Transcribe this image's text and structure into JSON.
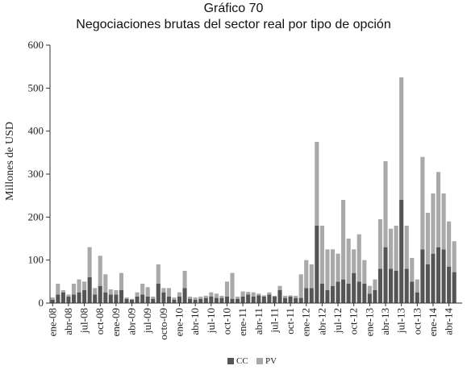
{
  "chart_data": {
    "type": "bar",
    "stacked": true,
    "title": "Gráfico 70",
    "subtitle": "Negociaciones brutas del sector real por tipo de opción",
    "ylabel": "Millones de USD",
    "ylim": [
      0,
      600
    ],
    "yticks": [
      "0",
      "100",
      "200",
      "300",
      "400",
      "500",
      "600"
    ],
    "tick_labels": [
      "ene-08",
      "abr-08",
      "jul-08",
      "oct-08",
      "ene-09",
      "abr-09",
      "jul-09",
      "octo-09",
      "ene-10",
      "abr-10",
      "jul-10",
      "oct-10",
      "ene-11",
      "abr-11",
      "jul-11",
      "oct-11",
      "ene-12",
      "abr-12",
      "jul-12",
      "oct-12",
      "ene-13",
      "abr-13",
      "jul-13",
      "oct-13",
      "ene-14",
      "abr-14"
    ],
    "categories": [
      "ene-08",
      "feb-08",
      "mar-08",
      "abr-08",
      "may-08",
      "jun-08",
      "jul-08",
      "ago-08",
      "sep-08",
      "oct-08",
      "nov-08",
      "dic-08",
      "ene-09",
      "feb-09",
      "mar-09",
      "abr-09",
      "may-09",
      "jun-09",
      "jul-09",
      "ago-09",
      "sep-09",
      "octo-09",
      "nov-09",
      "dic-09",
      "ene-10",
      "feb-10",
      "mar-10",
      "abr-10",
      "may-10",
      "jun-10",
      "jul-10",
      "ago-10",
      "sep-10",
      "oct-10",
      "nov-10",
      "dic-10",
      "ene-11",
      "feb-11",
      "mar-11",
      "abr-11",
      "may-11",
      "jun-11",
      "jul-11",
      "ago-11",
      "sep-11",
      "oct-11",
      "nov-11",
      "dic-11",
      "ene-12",
      "feb-12",
      "mar-12",
      "abr-12",
      "may-12",
      "jun-12",
      "jul-12",
      "ago-12",
      "sep-12",
      "oct-12",
      "nov-12",
      "dic-12",
      "ene-13",
      "feb-13",
      "mar-13",
      "abr-13",
      "may-13",
      "jun-13",
      "jul-13",
      "ago-13",
      "sep-13",
      "oct-13",
      "nov-13",
      "dic-13",
      "ene-14",
      "feb-14",
      "mar-14",
      "abr-14",
      "may-14",
      "jun-14"
    ],
    "series": [
      {
        "name": "CC",
        "color": "#555555",
        "values": [
          8,
          20,
          25,
          15,
          20,
          25,
          30,
          60,
          20,
          40,
          25,
          20,
          20,
          30,
          10,
          8,
          15,
          20,
          15,
          10,
          45,
          25,
          15,
          8,
          15,
          35,
          10,
          8,
          10,
          12,
          15,
          12,
          12,
          15,
          10,
          10,
          15,
          20,
          15,
          18,
          15,
          20,
          15,
          30,
          12,
          15,
          12,
          12,
          35,
          35,
          180,
          45,
          30,
          40,
          50,
          55,
          45,
          70,
          50,
          45,
          22,
          30,
          80,
          130,
          80,
          75,
          240,
          80,
          50,
          25,
          125,
          90,
          115,
          130,
          125,
          85,
          72,
          0
        ]
      },
      {
        "name": "PV",
        "color": "#a9a9a9",
        "values": [
          5,
          25,
          5,
          5,
          25,
          30,
          20,
          70,
          15,
          70,
          42,
          12,
          10,
          40,
          3,
          2,
          10,
          25,
          22,
          5,
          45,
          10,
          20,
          5,
          10,
          40,
          5,
          5,
          5,
          5,
          10,
          10,
          5,
          35,
          60,
          5,
          12,
          6,
          10,
          4,
          3,
          5,
          2,
          10,
          5,
          3,
          5,
          55,
          65,
          55,
          195,
          135,
          95,
          85,
          65,
          185,
          105,
          55,
          110,
          55,
          18,
          25,
          115,
          200,
          93,
          105,
          285,
          100,
          55,
          30,
          215,
          120,
          140,
          175,
          130,
          105,
          72,
          0
        ]
      }
    ],
    "legend": {
      "position": "bottom",
      "entries": [
        "CC",
        "PV"
      ]
    },
    "grid": false
  }
}
